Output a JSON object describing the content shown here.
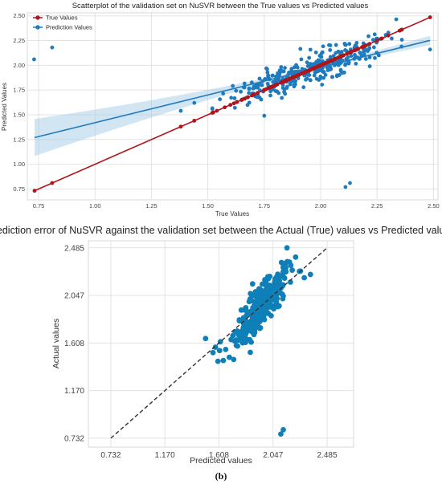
{
  "chart_data": [
    {
      "type": "scatter",
      "title": "Scatterplot of the validation set on NuSVR between the True values vs Predicted values",
      "xlabel": "True Values",
      "ylabel": "Predicted Values",
      "xlim": [
        0.7,
        2.52
      ],
      "ylim": [
        0.64,
        2.53
      ],
      "xticks": [
        "0.75",
        "1.00",
        "1.25",
        "1.50",
        "1.75",
        "2.00",
        "2.25",
        "2.50"
      ],
      "yticks": [
        "0.75",
        "1.00",
        "1.25",
        "1.50",
        "1.75",
        "2.00",
        "2.25",
        "2.50"
      ],
      "grid": true,
      "legend_position": "top-left",
      "series": [
        {
          "name": "True Values",
          "color": "#b0141b",
          "regression": {
            "slope": 1.0,
            "intercept": 0.0,
            "x_range": [
              0.732,
              2.485
            ]
          },
          "points": [
            [
              0.732,
              0.732
            ],
            [
              0.81,
              0.81
            ],
            [
              1.38,
              1.38
            ],
            [
              1.44,
              1.44
            ],
            [
              1.52,
              1.52
            ],
            [
              1.54,
              1.54
            ],
            [
              1.6,
              1.6
            ],
            [
              1.65,
              1.65
            ],
            [
              1.7,
              1.7
            ],
            [
              1.75,
              1.75
            ],
            [
              1.8,
              1.8
            ],
            [
              1.85,
              1.85
            ],
            [
              1.9,
              1.9
            ],
            [
              1.95,
              1.95
            ],
            [
              2.0,
              2.0
            ],
            [
              2.05,
              2.05
            ],
            [
              2.1,
              2.1
            ],
            [
              2.15,
              2.15
            ],
            [
              2.2,
              2.2
            ],
            [
              2.25,
              2.25
            ],
            [
              2.3,
              2.3
            ],
            [
              2.35,
              2.35
            ],
            [
              2.485,
              2.485
            ]
          ]
        },
        {
          "name": "Prediction Values",
          "color": "#1f7bbd",
          "regression": {
            "slope": 0.56,
            "intercept": 0.86,
            "x_range": [
              0.732,
              2.485
            ]
          },
          "points": [
            [
              0.73,
              2.06
            ],
            [
              0.81,
              2.18
            ],
            [
              1.38,
              1.54
            ],
            [
              1.44,
              1.62
            ],
            [
              2.11,
              0.77
            ],
            [
              2.13,
              0.81
            ],
            [
              2.485,
              2.16
            ],
            [
              1.75,
              1.49
            ],
            [
              1.62,
              1.57
            ],
            [
              2.3,
              2.33
            ]
          ]
        }
      ]
    },
    {
      "type": "scatter",
      "title": "Prediction error of NuSVR against the validation set between the Actual (True) values vs Predicted values",
      "xlabel": "Predicted values",
      "ylabel": "Actual values",
      "xlim": [
        0.55,
        2.7
      ],
      "ylim": [
        0.65,
        2.55
      ],
      "xticks": [
        "0.732",
        "1.170",
        "1.608",
        "2.047",
        "2.485"
      ],
      "yticks": [
        "0.732",
        "1.170",
        "1.608",
        "2.047",
        "2.485"
      ],
      "identity_line": [
        0.732,
        2.485
      ],
      "color": "#0f7fb8",
      "grid": true,
      "points": [
        [
          2.11,
          0.77
        ],
        [
          2.13,
          0.81
        ],
        [
          2.16,
          2.485
        ],
        [
          1.5,
          1.65
        ],
        [
          1.56,
          1.52
        ],
        [
          1.58,
          1.57
        ],
        [
          1.6,
          1.44
        ],
        [
          1.62,
          1.62
        ],
        [
          2.3,
          2.21
        ],
        [
          2.35,
          2.24
        ]
      ]
    }
  ],
  "caption": "(b)"
}
